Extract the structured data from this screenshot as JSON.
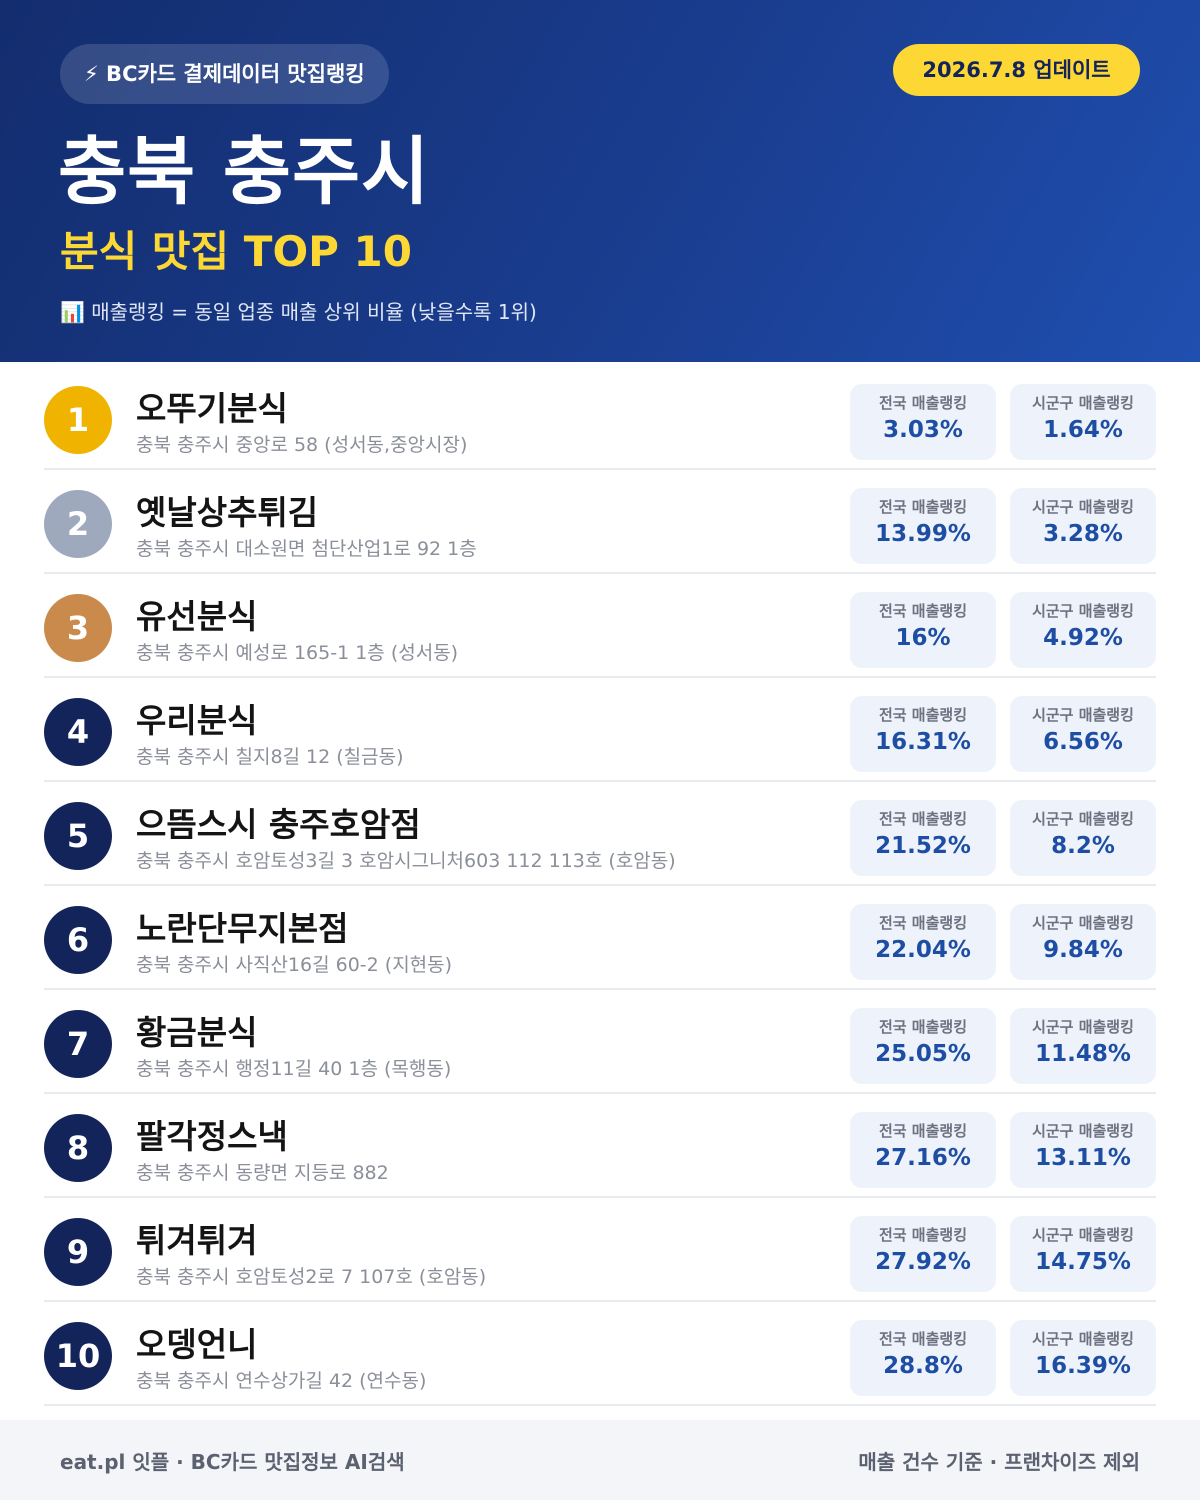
{
  "header": {
    "badge": "⚡ BC카드 결제데이터 맛집랭킹",
    "date": "2026.7.8 업데이트",
    "title": "충북 충주시",
    "subtitle": "분식 맛집 TOP 10",
    "note": "📊 매출랭킹 = 동일 업종 매출 상위 비율 (낮을수록 1위)"
  },
  "list": {
    "national_label": "전국 매출랭킹",
    "local_label": "시군구 매출랭킹",
    "items": [
      {
        "rank": 1,
        "name": "오뚜기분식",
        "address": "충북 충주시 중앙로 58 (성서동,중앙시장)",
        "national": "3.03%",
        "local": "1.64%"
      },
      {
        "rank": 2,
        "name": "옛날상추튀김",
        "address": "충북 충주시 대소원면 첨단산업1로 92 1층",
        "national": "13.99%",
        "local": "3.28%"
      },
      {
        "rank": 3,
        "name": "유선분식",
        "address": "충북 충주시 예성로 165-1 1층 (성서동)",
        "national": "16%",
        "local": "4.92%"
      },
      {
        "rank": 4,
        "name": "우리분식",
        "address": "충북 충주시 칠지8길 12 (칠금동)",
        "national": "16.31%",
        "local": "6.56%"
      },
      {
        "rank": 5,
        "name": "으뜸스시 충주호암점",
        "address": "충북 충주시 호암토성3길 3 호암시그니처603 112 113호 (호암동)",
        "national": "21.52%",
        "local": "8.2%"
      },
      {
        "rank": 6,
        "name": "노란단무지본점",
        "address": "충북 충주시 사직산16길 60-2 (지현동)",
        "national": "22.04%",
        "local": "9.84%"
      },
      {
        "rank": 7,
        "name": "황금분식",
        "address": "충북 충주시 행정11길 40 1층 (목행동)",
        "national": "25.05%",
        "local": "11.48%"
      },
      {
        "rank": 8,
        "name": "팔각정스낵",
        "address": "충북 충주시 동량면 지등로 882",
        "national": "27.16%",
        "local": "13.11%"
      },
      {
        "rank": 9,
        "name": "튀겨튀겨",
        "address": "충북 충주시 호암토성2로 7 107호 (호암동)",
        "national": "27.92%",
        "local": "14.75%"
      },
      {
        "rank": 10,
        "name": "오뎅언니",
        "address": "충북 충주시 연수상가길 42 (연수동)",
        "national": "28.8%",
        "local": "16.39%"
      }
    ]
  },
  "footer": {
    "left": "eat.pl 잇플 · BC카드 맛집정보 AI검색",
    "right": "매출 건수 기준 · 프랜차이즈 제외"
  }
}
